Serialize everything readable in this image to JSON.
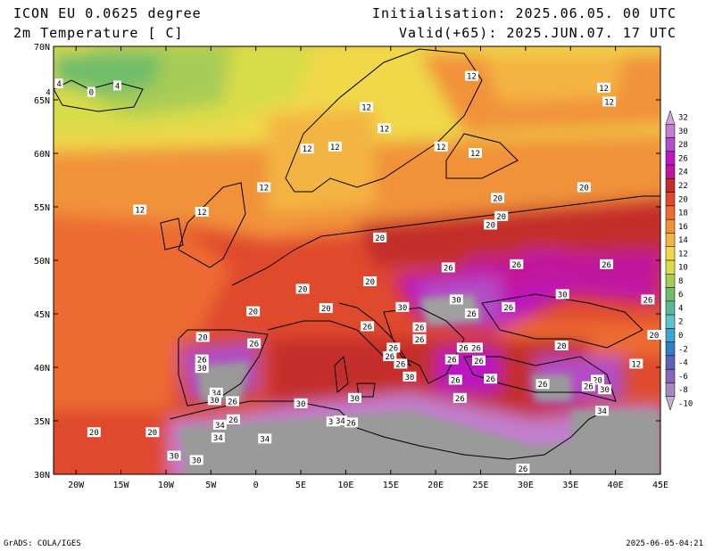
{
  "header": {
    "model": "ICON EU 0.0625 degree",
    "variable": "2m Temperature [ C]",
    "init": "Initialisation: 2025.06.05. 00 UTC",
    "valid": "Valid(+65): 2025.JUN.07. 17 UTC"
  },
  "footer": {
    "credit": "GrADS: COLA/IGES",
    "timestamp": "2025-06-05-04:21"
  },
  "axes": {
    "lon_labels": [
      "20W",
      "15W",
      "10W",
      "5W",
      "0",
      "5E",
      "10E",
      "15E",
      "20E",
      "25E",
      "30E",
      "35E",
      "40E",
      "45E"
    ],
    "lat_labels": [
      "30N",
      "35N",
      "40N",
      "45N",
      "50N",
      "55N",
      "60N",
      "65N",
      "70N"
    ]
  },
  "colorbar": {
    "labels": [
      "32",
      "30",
      "28",
      "26",
      "24",
      "22",
      "20",
      "18",
      "16",
      "14",
      "12",
      "10",
      "8",
      "6",
      "4",
      "2",
      "0",
      "-2",
      "-4",
      "-6",
      "-8",
      "-10"
    ],
    "colors": [
      "#d3a1dc",
      "#c27fcd",
      "#b24ec6",
      "#bb18c1",
      "#c1149c",
      "#c42e2a",
      "#df4a2d",
      "#ed6b33",
      "#f1923a",
      "#f4b443",
      "#f0d84a",
      "#d8dc4a",
      "#a7cc55",
      "#6fbd6a",
      "#5ab797",
      "#5ec4cb",
      "#3ba5cf",
      "#2f7fc2",
      "#5f63b7",
      "#8a64b6",
      "#a48ac1",
      "#bfb0cf"
    ]
  },
  "contour_labels": [
    {
      "text": "4",
      "lon": -21.9,
      "lat": 66.5
    },
    {
      "text": "4",
      "lon": -15.4,
      "lat": 66.3
    },
    {
      "text": "0",
      "lon": -18.3,
      "lat": 65.7
    },
    {
      "text": "4",
      "lon": -23.1,
      "lat": 65.7
    },
    {
      "text": "12",
      "lon": 24.0,
      "lat": 67.2
    },
    {
      "text": "12",
      "lon": 38.7,
      "lat": 66.1
    },
    {
      "text": "12",
      "lon": 39.3,
      "lat": 64.8
    },
    {
      "text": "12",
      "lon": 12.3,
      "lat": 64.3
    },
    {
      "text": "12",
      "lon": 14.3,
      "lat": 62.3
    },
    {
      "text": "12",
      "lon": 5.7,
      "lat": 60.4
    },
    {
      "text": "12",
      "lon": 8.8,
      "lat": 60.6
    },
    {
      "text": "12",
      "lon": 20.6,
      "lat": 60.6
    },
    {
      "text": "12",
      "lon": 24.4,
      "lat": 60.0
    },
    {
      "text": "12",
      "lon": 0.9,
      "lat": 56.8
    },
    {
      "text": "12",
      "lon": -12.9,
      "lat": 54.7
    },
    {
      "text": "12",
      "lon": -6.0,
      "lat": 54.5
    },
    {
      "text": "20",
      "lon": 36.5,
      "lat": 56.8
    },
    {
      "text": "20",
      "lon": 26.9,
      "lat": 55.8
    },
    {
      "text": "20",
      "lon": 27.3,
      "lat": 54.1
    },
    {
      "text": "20",
      "lon": 26.1,
      "lat": 53.3
    },
    {
      "text": "20",
      "lon": 13.8,
      "lat": 52.1
    },
    {
      "text": "26",
      "lon": 21.4,
      "lat": 49.3
    },
    {
      "text": "26",
      "lon": 29.0,
      "lat": 49.6
    },
    {
      "text": "26",
      "lon": 39.0,
      "lat": 49.6
    },
    {
      "text": "20",
      "lon": 12.7,
      "lat": 48.0
    },
    {
      "text": "20",
      "lon": 5.2,
      "lat": 47.3
    },
    {
      "text": "30",
      "lon": 34.1,
      "lat": 46.8
    },
    {
      "text": "26",
      "lon": 43.6,
      "lat": 46.3
    },
    {
      "text": "20",
      "lon": 7.8,
      "lat": 45.5
    },
    {
      "text": "30",
      "lon": 16.3,
      "lat": 45.6
    },
    {
      "text": "30",
      "lon": 22.3,
      "lat": 46.3
    },
    {
      "text": "26",
      "lon": 24.0,
      "lat": 45.0
    },
    {
      "text": "26",
      "lon": 28.1,
      "lat": 45.6
    },
    {
      "text": "20",
      "lon": -0.3,
      "lat": 45.2
    },
    {
      "text": "26",
      "lon": 12.4,
      "lat": 43.8
    },
    {
      "text": "26",
      "lon": 18.2,
      "lat": 43.7
    },
    {
      "text": "26",
      "lon": 18.2,
      "lat": 42.6
    },
    {
      "text": "20",
      "lon": 44.3,
      "lat": 43.0
    },
    {
      "text": "20",
      "lon": -5.9,
      "lat": 42.8
    },
    {
      "text": "26",
      "lon": -0.2,
      "lat": 42.2
    },
    {
      "text": "26",
      "lon": 15.3,
      "lat": 41.8
    },
    {
      "text": "26",
      "lon": 23.1,
      "lat": 41.8
    },
    {
      "text": "26",
      "lon": 24.5,
      "lat": 41.8
    },
    {
      "text": "20",
      "lon": 34.0,
      "lat": 42.0
    },
    {
      "text": "26",
      "lon": 14.9,
      "lat": 41.0
    },
    {
      "text": "26",
      "lon": 16.1,
      "lat": 40.3
    },
    {
      "text": "26",
      "lon": 21.8,
      "lat": 40.7
    },
    {
      "text": "26",
      "lon": 24.8,
      "lat": 40.6
    },
    {
      "text": "12",
      "lon": 42.3,
      "lat": 40.3
    },
    {
      "text": "26",
      "lon": -6.0,
      "lat": 40.7
    },
    {
      "text": "30",
      "lon": -6.0,
      "lat": 39.9
    },
    {
      "text": "30",
      "lon": 17.1,
      "lat": 39.1
    },
    {
      "text": "26",
      "lon": 22.2,
      "lat": 38.8
    },
    {
      "text": "26",
      "lon": 26.1,
      "lat": 38.9
    },
    {
      "text": "26",
      "lon": 31.9,
      "lat": 38.4
    },
    {
      "text": "20",
      "lon": 38.0,
      "lat": 38.8
    },
    {
      "text": "26",
      "lon": 37.0,
      "lat": 38.2
    },
    {
      "text": "30",
      "lon": 38.8,
      "lat": 37.9
    },
    {
      "text": "34",
      "lon": -4.4,
      "lat": 37.6
    },
    {
      "text": "30",
      "lon": -4.6,
      "lat": 36.9
    },
    {
      "text": "26",
      "lon": -2.6,
      "lat": 36.8
    },
    {
      "text": "26",
      "lon": 22.7,
      "lat": 37.1
    },
    {
      "text": "30",
      "lon": 5.0,
      "lat": 36.6
    },
    {
      "text": "30",
      "lon": 11.0,
      "lat": 37.1
    },
    {
      "text": "34",
      "lon": 38.5,
      "lat": 35.9
    },
    {
      "text": "26",
      "lon": -2.5,
      "lat": 35.1
    },
    {
      "text": "34",
      "lon": -4.0,
      "lat": 34.6
    },
    {
      "text": "30",
      "lon": 8.6,
      "lat": 34.9
    },
    {
      "text": "34",
      "lon": 9.4,
      "lat": 35.0
    },
    {
      "text": "26",
      "lon": 10.6,
      "lat": 34.8
    },
    {
      "text": "20",
      "lon": -18.0,
      "lat": 33.9
    },
    {
      "text": "20",
      "lon": -11.5,
      "lat": 33.9
    },
    {
      "text": "34",
      "lon": -4.2,
      "lat": 33.4
    },
    {
      "text": "34",
      "lon": 1.0,
      "lat": 33.3
    },
    {
      "text": "30",
      "lon": -9.1,
      "lat": 31.7
    },
    {
      "text": "30",
      "lon": -6.6,
      "lat": 31.3
    },
    {
      "text": "26",
      "lon": 29.7,
      "lat": 30.5
    }
  ]
}
